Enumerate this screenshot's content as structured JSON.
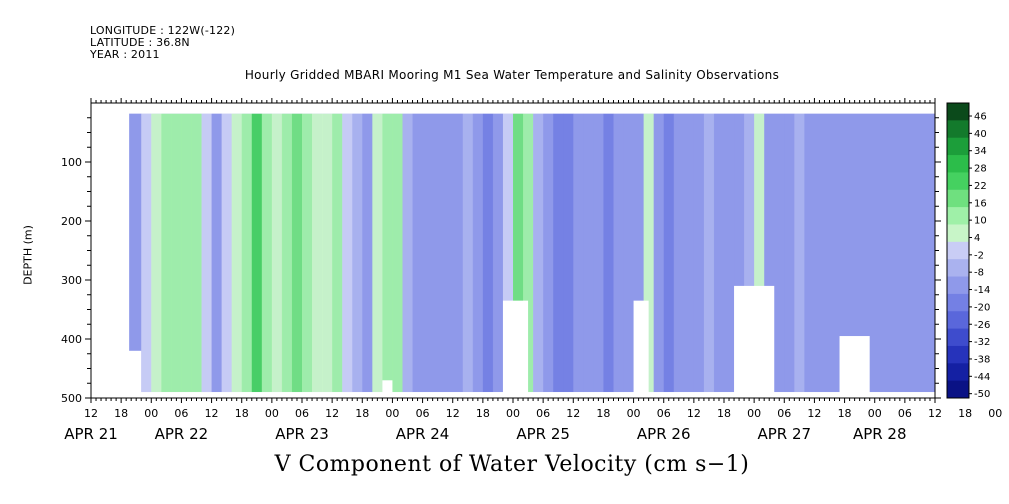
{
  "header": {
    "longitude": "LONGITUDE : 122W(-122)",
    "latitude": "LATITUDE : 36.8N",
    "year": "YEAR : 2011"
  },
  "chart_data": {
    "type": "heatmap",
    "title": "Hourly Gridded MBARI Mooring M1 Sea Water Temperature and Salinity Observations",
    "xlabel": "V Component of Water Velocity (cm s−1)",
    "ylabel": "DEPTH (m)",
    "x_range_hours": [
      "2011-04-21T12:00",
      "2011-04-28T14:00"
    ],
    "x_hour_ticks": [
      "12",
      "18",
      "00",
      "06",
      "12",
      "18",
      "00",
      "06",
      "12",
      "18",
      "00",
      "06",
      "12",
      "18",
      "00",
      "06",
      "12",
      "18",
      "00",
      "06",
      "12",
      "18",
      "00",
      "06",
      "12",
      "18",
      "00",
      "06",
      "12",
      "18",
      "00",
      "06",
      "12"
    ],
    "x_date_labels": [
      {
        "label": "APR 21",
        "hour": 12
      },
      {
        "label": "APR 22",
        "hour": 30
      },
      {
        "label": "APR 23",
        "hour": 54
      },
      {
        "label": "APR 24",
        "hour": 78
      },
      {
        "label": "APR 25",
        "hour": 102
      },
      {
        "label": "APR 26",
        "hour": 126
      },
      {
        "label": "APR 27",
        "hour": 150
      },
      {
        "label": "APR 28",
        "hour": 169
      }
    ],
    "y_range": [
      0,
      500
    ],
    "y_inverted": true,
    "y_ticks": [
      100,
      200,
      300,
      400,
      500
    ],
    "y_ticks_display": [
      "100",
      "200",
      "300",
      "400",
      "500"
    ],
    "data_start_depth": 18,
    "colorbar_labels": [
      "46",
      "40",
      "34",
      "28",
      "22",
      "16",
      "10",
      "4",
      "-2",
      "-8",
      "-14",
      "-20",
      "-26",
      "-32",
      "-38",
      "-44",
      "-50"
    ],
    "colorbar_colors": [
      "#0b4a1b",
      "#137a2c",
      "#1c9e3a",
      "#2cbd4a",
      "#45d160",
      "#6fe07f",
      "#9ff0a8",
      "#c8f5c8",
      "#c9cdf5",
      "#aab2ef",
      "#8f99ea",
      "#7480e4",
      "#5a67db",
      "#3e4ccd",
      "#2633bb",
      "#1420a3",
      "#0a1285"
    ],
    "bands": [
      {
        "hour": 12,
        "value": -14
      },
      {
        "hour": 14,
        "value": -12
      },
      {
        "hour": 16,
        "value": -16
      },
      {
        "hour": 18,
        "value": -14
      },
      {
        "hour": 20,
        "value": -10
      },
      {
        "hour": 22,
        "value": 2
      },
      {
        "hour": 24,
        "value": 6
      },
      {
        "hour": 26,
        "value": 10
      },
      {
        "hour": 28,
        "value": 12
      },
      {
        "hour": 30,
        "value": 14
      },
      {
        "hour": 32,
        "value": 10
      },
      {
        "hour": 34,
        "value": 2
      },
      {
        "hour": 36,
        "value": -10
      },
      {
        "hour": 38,
        "value": -2
      },
      {
        "hour": 40,
        "value": 8
      },
      {
        "hour": 42,
        "value": 14
      },
      {
        "hour": 44,
        "value": 22
      },
      {
        "hour": 46,
        "value": 10
      },
      {
        "hour": 48,
        "value": 6
      },
      {
        "hour": 50,
        "value": 12
      },
      {
        "hour": 52,
        "value": 16
      },
      {
        "hour": 54,
        "value": 14
      },
      {
        "hour": 56,
        "value": 8
      },
      {
        "hour": 58,
        "value": 4
      },
      {
        "hour": 60,
        "value": 10
      },
      {
        "hour": 62,
        "value": 2
      },
      {
        "hour": 64,
        "value": -6
      },
      {
        "hour": 66,
        "value": -10
      },
      {
        "hour": 68,
        "value": 6
      },
      {
        "hour": 70,
        "value": 12
      },
      {
        "hour": 72,
        "value": 10
      },
      {
        "hour": 74,
        "value": -4
      },
      {
        "hour": 76,
        "value": -12
      },
      {
        "hour": 78,
        "value": -14
      },
      {
        "hour": 80,
        "value": -10
      },
      {
        "hour": 82,
        "value": -12
      },
      {
        "hour": 84,
        "value": -14
      },
      {
        "hour": 86,
        "value": -8
      },
      {
        "hour": 88,
        "value": -14
      },
      {
        "hour": 90,
        "value": -16
      },
      {
        "hour": 92,
        "value": -12
      },
      {
        "hour": 94,
        "value": 2
      },
      {
        "hour": 96,
        "value": 16
      },
      {
        "hour": 98,
        "value": 14
      },
      {
        "hour": 100,
        "value": -8
      },
      {
        "hour": 102,
        "value": -14
      },
      {
        "hour": 104,
        "value": -16
      },
      {
        "hour": 106,
        "value": -18
      },
      {
        "hour": 108,
        "value": -14
      },
      {
        "hour": 110,
        "value": -10
      },
      {
        "hour": 112,
        "value": -14
      },
      {
        "hour": 114,
        "value": -16
      },
      {
        "hour": 116,
        "value": -14
      },
      {
        "hour": 118,
        "value": -12
      },
      {
        "hour": 120,
        "value": -10
      },
      {
        "hour": 122,
        "value": 4
      },
      {
        "hour": 124,
        "value": -14
      },
      {
        "hour": 126,
        "value": -16
      },
      {
        "hour": 128,
        "value": -14
      },
      {
        "hour": 130,
        "value": -10
      },
      {
        "hour": 132,
        "value": -12
      },
      {
        "hour": 134,
        "value": -8
      },
      {
        "hour": 136,
        "value": -10
      },
      {
        "hour": 138,
        "value": -14
      },
      {
        "hour": 140,
        "value": -12
      },
      {
        "hour": 142,
        "value": -4
      },
      {
        "hour": 144,
        "value": 8
      },
      {
        "hour": 146,
        "value": -10
      },
      {
        "hour": 148,
        "value": -14
      },
      {
        "hour": 150,
        "value": -12
      },
      {
        "hour": 152,
        "value": -6
      },
      {
        "hour": 154,
        "value": -10
      }
    ],
    "blank_regions": [
      {
        "hour_start": 17,
        "hour_end": 22,
        "depth_start": 420
      },
      {
        "hour_start": 70,
        "hour_end": 72,
        "depth_start": 470
      },
      {
        "hour_start": 94,
        "hour_end": 99,
        "depth_start": 335
      },
      {
        "hour_start": 120,
        "hour_end": 123,
        "depth_start": 335
      },
      {
        "hour_start": 140,
        "hour_end": 148,
        "depth_start": 310
      },
      {
        "hour_start": 161,
        "hour_end": 167,
        "depth_start": 395
      }
    ]
  }
}
